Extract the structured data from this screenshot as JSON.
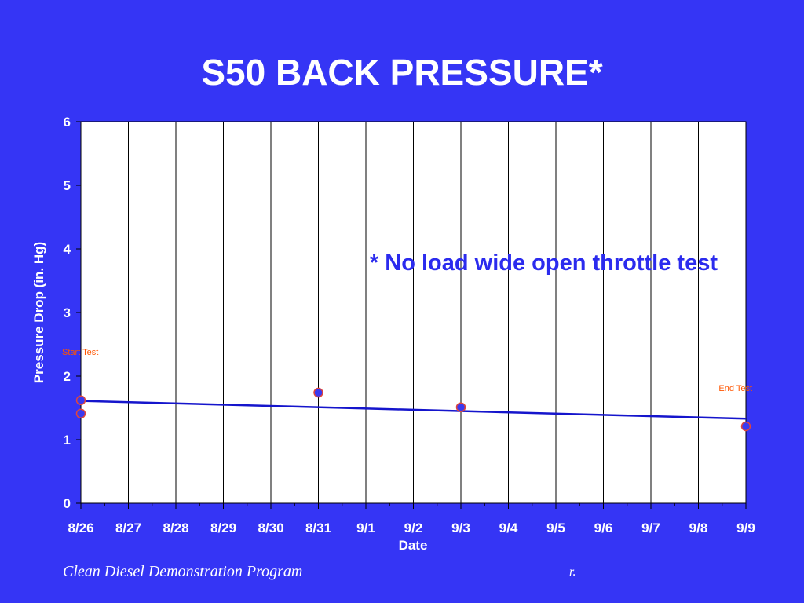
{
  "slide": {
    "title": "S50 BACK PRESSURE*",
    "footer_text": "Clean Diesel Demonstration Program",
    "footer_mark": "r."
  },
  "colors": {
    "background": "#3535f5",
    "plot_background": "#ffffff",
    "trendline": "#1515cc",
    "marker_fill": "#3a3af0",
    "marker_edge": "#e0463c",
    "annotation_main": "#2b2bee",
    "annotation_small": "#ff5500",
    "text": "#ffffff"
  },
  "chart_data": {
    "type": "scatter",
    "title": "",
    "xlabel": "Date",
    "ylabel": "Pressure Drop (in. Hg)",
    "categories": [
      "8/26",
      "8/27",
      "8/28",
      "8/29",
      "8/30",
      "8/31",
      "9/1",
      "9/2",
      "9/3",
      "9/4",
      "9/5",
      "9/6",
      "9/7",
      "9/8",
      "9/9"
    ],
    "ylim": [
      0,
      6
    ],
    "yticks": [
      0,
      1,
      2,
      3,
      4,
      5,
      6
    ],
    "grid": "vertical",
    "legend": "none",
    "series": [
      {
        "points": [
          {
            "x": "8/26",
            "y": 1.62
          },
          {
            "x": "8/26",
            "y": 1.41
          },
          {
            "x": "8/31",
            "y": 1.74
          },
          {
            "x": "9/3",
            "y": 1.51
          },
          {
            "x": "9/9",
            "y": 1.21
          }
        ]
      }
    ],
    "trendline": {
      "start": {
        "x": "8/26",
        "y": 1.61
      },
      "end": {
        "x": "9/9",
        "y": 1.33
      }
    },
    "annotations": [
      {
        "text": "* No load wide open throttle test",
        "anchor": "upper-right"
      },
      {
        "text": "Start Test",
        "x": "8/26",
        "y": 2.4
      },
      {
        "text": "End Test",
        "x": "9/9",
        "y": 1.8
      }
    ]
  }
}
